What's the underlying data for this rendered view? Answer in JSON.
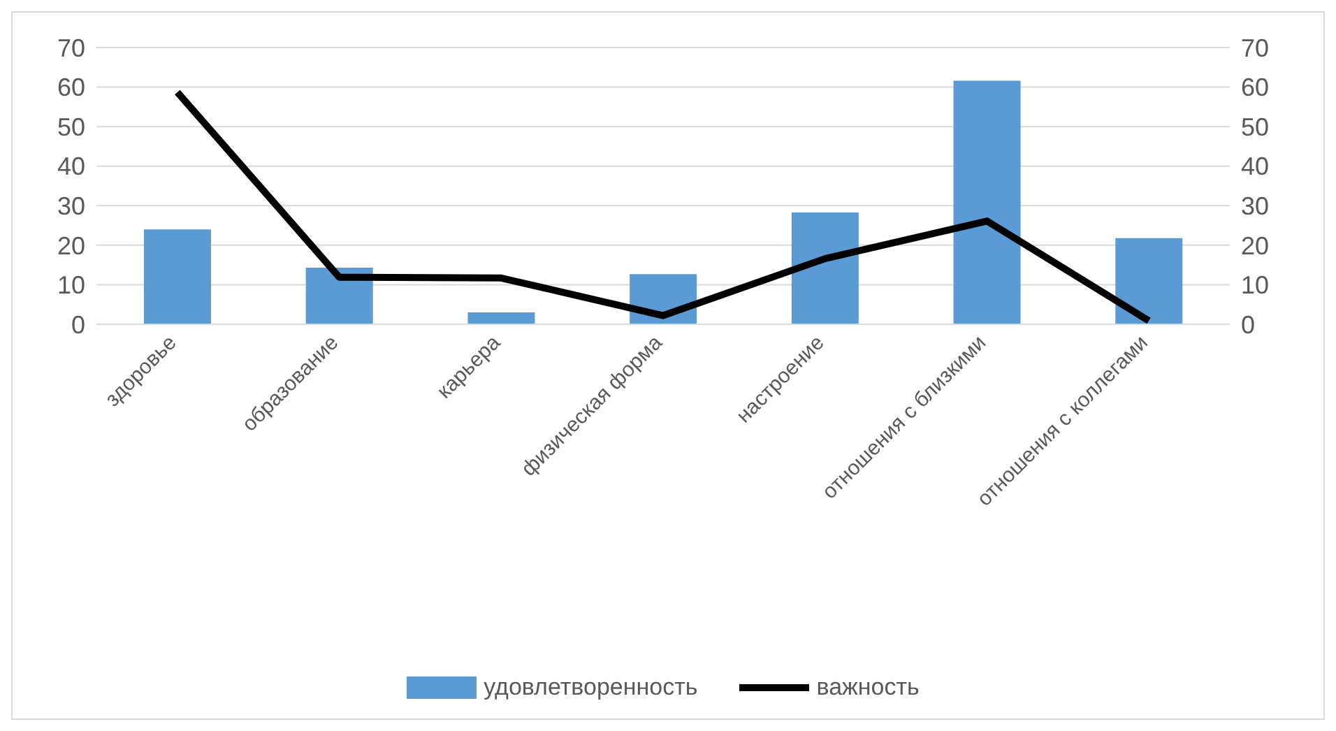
{
  "chart_data": {
    "type": "bar",
    "categories": [
      "здоровье",
      "образование",
      "карьера",
      "физическая форма",
      "настроение",
      "отношения с близкими",
      "отношения с коллегами"
    ],
    "series": [
      {
        "name": "удовлетворенность",
        "color": "#5b9bd5",
        "values": [
          24,
          14.3,
          3,
          12.7,
          28.3,
          61.6,
          21.8
        ]
      },
      {
        "name": "важность",
        "type": "line",
        "color": "#000000",
        "values": [
          58.7,
          11.9,
          11.7,
          2.2,
          16.6,
          26.1,
          0.9
        ]
      }
    ],
    "ylim": [
      0,
      70
    ],
    "yticks": [
      0,
      10,
      20,
      30,
      40,
      50,
      60,
      70
    ],
    "y2lim": [
      0,
      70
    ],
    "y2ticks": [
      0,
      10,
      20,
      30,
      40,
      50,
      60,
      70
    ],
    "grid": "y",
    "legend": "bottom",
    "marker": "none"
  }
}
